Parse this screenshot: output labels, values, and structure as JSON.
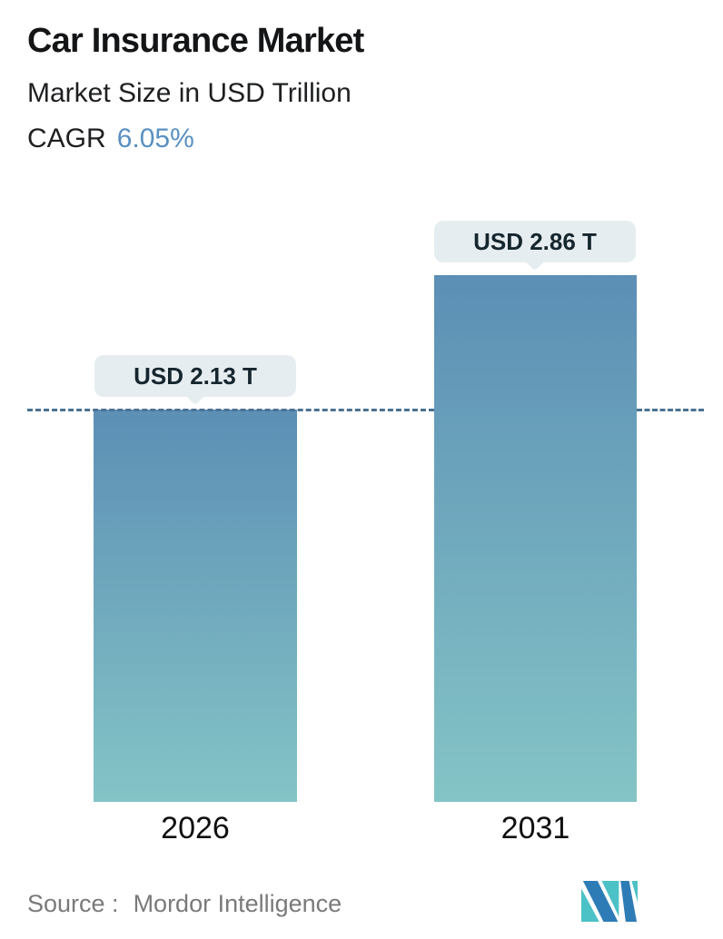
{
  "header": {
    "title": "Car Insurance Market",
    "subtitle": "Market Size in USD Trillion",
    "cagr_label": "CAGR",
    "cagr_value": "6.05%"
  },
  "chart_data": {
    "type": "bar",
    "title": "Car Insurance Market",
    "subtitle": "Market Size in USD Trillion",
    "cagr": "6.05%",
    "unit": "USD Trillion",
    "categories": [
      "2026",
      "2031"
    ],
    "values": [
      2.13,
      2.86
    ],
    "value_labels": [
      "USD 2.13 T",
      "USD 2.86 T"
    ],
    "reference_line": {
      "style": "dashed",
      "at_value": 2.13
    },
    "ylim": [
      0,
      2.86
    ],
    "grid": "off",
    "legend": "none",
    "bar_gradient_top": "#5c8fb5",
    "bar_gradient_bottom": "#84c4c6"
  },
  "footer": {
    "source_label": "Source :",
    "source_value": "Mordor Intelligence",
    "logo_name": "mordor-intelligence-logo"
  },
  "colors": {
    "accent_blue": "#5a90c1",
    "tooltip_bg": "#e6edf0",
    "tooltip_text": "#16262e",
    "dashed_line": "#4a7291",
    "source_text": "#7a7a7a",
    "logo_teal": "#4cc2c6",
    "logo_blue": "#2e7cb6"
  }
}
